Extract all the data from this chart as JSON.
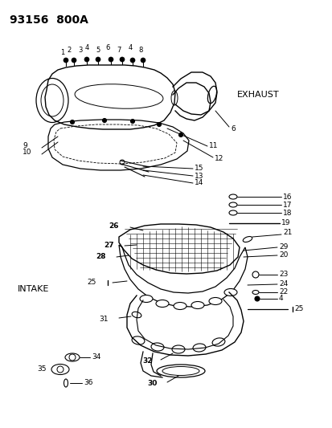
{
  "title": "93156  800A",
  "bg": "#ffffff",
  "fg": "#000000",
  "exhaust_label": "EXHAUST",
  "intake_label": "INTAKE",
  "fig_w": 4.14,
  "fig_h": 5.33,
  "dpi": 100
}
